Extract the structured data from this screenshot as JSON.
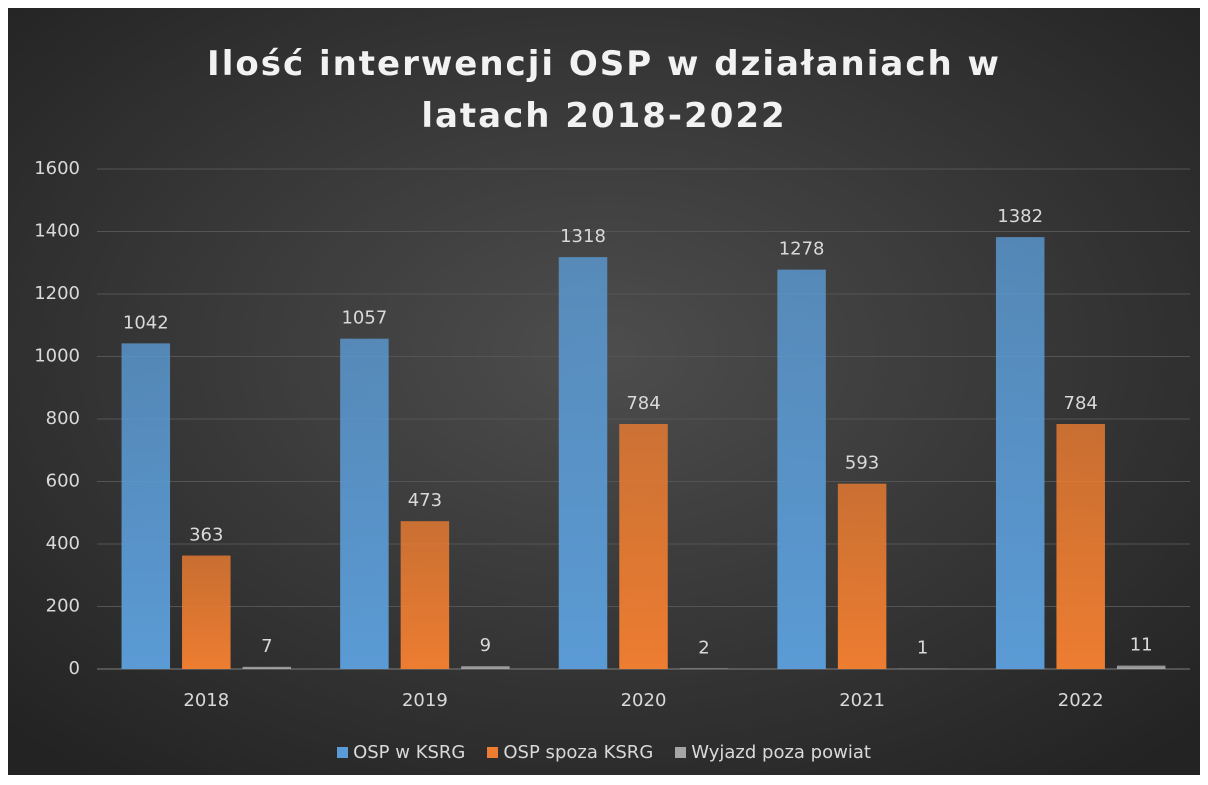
{
  "chart_data": {
    "type": "bar",
    "title": "Ilość interwencji OSP w działaniach w latach 2018-2022",
    "categories": [
      "2018",
      "2019",
      "2020",
      "2021",
      "2022"
    ],
    "series": [
      {
        "name": "OSP w KSRG",
        "color": "#5b9bd5",
        "values": [
          1042,
          1057,
          1318,
          1278,
          1382
        ]
      },
      {
        "name": "OSP spoza KSRG",
        "color": "#ed7d31",
        "values": [
          363,
          473,
          784,
          593,
          784
        ]
      },
      {
        "name": "Wyjazd poza powiat",
        "color": "#a5a5a5",
        "values": [
          7,
          9,
          2,
          1,
          11
        ]
      }
    ],
    "ylim": [
      0,
      1600
    ],
    "yticks": [
      0,
      200,
      400,
      600,
      800,
      1000,
      1200,
      1400,
      1600
    ],
    "grid": true,
    "legend": "bottom"
  }
}
